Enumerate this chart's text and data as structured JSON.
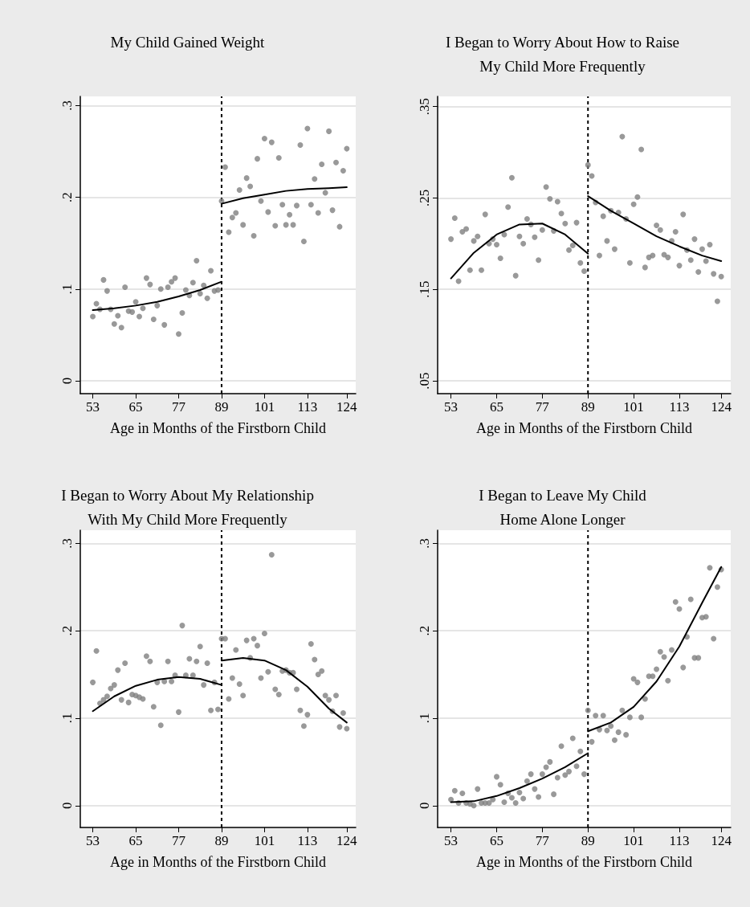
{
  "chart_data": [
    {
      "type": "scatter",
      "title": "My Child Gained Weight",
      "xlabel": "Age in Months of the Firstborn Child",
      "xlim": [
        49.5,
        126.5
      ],
      "xticks": [
        53,
        65,
        77,
        89,
        101,
        113,
        124
      ],
      "ylim": [
        -0.014,
        0.31
      ],
      "yticks": [
        {
          "value": 0,
          "label": "0"
        },
        {
          "value": 0.1,
          "label": ".1"
        },
        {
          "value": 0.2,
          "label": ".2"
        },
        {
          "value": 0.3,
          "label": ".3"
        }
      ],
      "grid": "y",
      "marker": "circle",
      "ref_lines": [
        {
          "axis": "x",
          "value": 89,
          "color": "#000000",
          "line_style": "dashed"
        }
      ],
      "x": [
        53,
        54,
        55,
        56,
        57,
        58,
        59,
        60,
        61,
        62,
        63,
        64,
        65,
        66,
        67,
        68,
        69,
        70,
        71,
        72,
        73,
        74,
        75,
        76,
        77,
        78,
        79,
        80,
        81,
        82,
        83,
        84,
        85,
        86,
        87,
        88,
        89,
        90,
        91,
        92,
        93,
        94,
        95,
        96,
        97,
        98,
        99,
        100,
        101,
        102,
        103,
        104,
        105,
        106,
        107,
        108,
        109,
        110,
        111,
        112,
        113,
        114,
        115,
        116,
        117,
        118,
        119,
        120,
        121,
        122,
        123,
        124
      ],
      "series": [
        {
          "color": "#808080",
          "values": [
            0.07,
            0.084,
            0.078,
            0.11,
            0.098,
            0.078,
            0.062,
            0.071,
            0.058,
            0.102,
            0.076,
            0.075,
            0.086,
            0.07,
            0.079,
            0.112,
            0.105,
            0.067,
            0.082,
            0.1,
            0.061,
            0.102,
            0.108,
            0.112,
            0.051,
            0.074,
            0.099,
            0.093,
            0.107,
            0.131,
            0.095,
            0.104,
            0.09,
            0.12,
            0.098,
            0.099,
            0.196,
            0.233,
            0.162,
            0.178,
            0.183,
            0.208,
            0.17,
            0.221,
            0.212,
            0.158,
            0.242,
            0.196,
            0.264,
            0.184,
            0.26,
            0.169,
            0.243,
            0.192,
            0.17,
            0.181,
            0.17,
            0.191,
            0.257,
            0.152,
            0.275,
            0.192,
            0.22,
            0.183,
            0.236,
            0.205,
            0.272,
            0.186,
            0.238,
            0.168,
            0.229,
            0.253
          ]
        },
        {
          "type": "line",
          "color": "#000000",
          "marker": "none",
          "x": [
            53,
            59,
            65,
            71,
            77,
            83,
            89
          ],
          "values": [
            0.077,
            0.079,
            0.082,
            0.086,
            0.092,
            0.099,
            0.108
          ]
        },
        {
          "type": "line",
          "color": "#000000",
          "marker": "none",
          "x": [
            89,
            95,
            101,
            107,
            113,
            119,
            124
          ],
          "values": [
            0.193,
            0.199,
            0.203,
            0.207,
            0.209,
            0.21,
            0.211
          ]
        }
      ]
    },
    {
      "type": "scatter",
      "title": "I Began to Worry About How to Raise\nMy Child More Frequently",
      "xlabel": "Age in Months of the Firstborn Child",
      "xlim": [
        49.5,
        126.5
      ],
      "xticks": [
        53,
        65,
        77,
        89,
        101,
        113,
        124
      ],
      "ylim": [
        0.036,
        0.361
      ],
      "yticks": [
        {
          "value": 0.05,
          "label": ".05"
        },
        {
          "value": 0.15,
          "label": ".15"
        },
        {
          "value": 0.25,
          "label": ".25"
        },
        {
          "value": 0.35,
          "label": ".35"
        }
      ],
      "grid": "y",
      "marker": "circle",
      "ref_lines": [
        {
          "axis": "x",
          "value": 89,
          "color": "#000000",
          "line_style": "dashed"
        }
      ],
      "x": [
        53,
        54,
        55,
        56,
        57,
        58,
        59,
        60,
        61,
        62,
        63,
        64,
        65,
        66,
        67,
        68,
        69,
        70,
        71,
        72,
        73,
        74,
        75,
        76,
        77,
        78,
        79,
        80,
        81,
        82,
        83,
        84,
        85,
        86,
        87,
        88,
        89,
        90,
        91,
        92,
        93,
        94,
        95,
        96,
        97,
        98,
        99,
        100,
        101,
        102,
        103,
        104,
        105,
        106,
        107,
        108,
        109,
        110,
        111,
        112,
        113,
        114,
        115,
        116,
        117,
        118,
        119,
        120,
        121,
        122,
        123,
        124
      ],
      "series": [
        {
          "color": "#808080",
          "values": [
            0.205,
            0.228,
            0.159,
            0.213,
            0.216,
            0.171,
            0.203,
            0.208,
            0.171,
            0.232,
            0.2,
            0.205,
            0.199,
            0.184,
            0.21,
            0.24,
            0.272,
            0.165,
            0.208,
            0.2,
            0.227,
            0.221,
            0.207,
            0.182,
            0.215,
            0.262,
            0.249,
            0.214,
            0.246,
            0.233,
            0.222,
            0.193,
            0.198,
            0.223,
            0.179,
            0.17,
            0.286,
            0.274,
            0.245,
            0.187,
            0.23,
            0.203,
            0.236,
            0.194,
            0.234,
            0.317,
            0.227,
            0.179,
            0.243,
            0.251,
            0.303,
            0.174,
            0.185,
            0.187,
            0.22,
            0.215,
            0.188,
            0.185,
            0.203,
            0.213,
            0.176,
            0.232,
            0.193,
            0.182,
            0.205,
            0.169,
            0.194,
            0.181,
            0.199,
            0.167,
            0.137,
            0.164
          ]
        },
        {
          "type": "line",
          "color": "#000000",
          "marker": "none",
          "x": [
            53,
            59,
            65,
            71,
            77,
            83,
            89
          ],
          "values": [
            0.162,
            0.19,
            0.21,
            0.221,
            0.222,
            0.21,
            0.189
          ]
        },
        {
          "type": "line",
          "color": "#000000",
          "marker": "none",
          "x": [
            89,
            95,
            101,
            107,
            113,
            119,
            124
          ],
          "values": [
            0.252,
            0.236,
            0.222,
            0.208,
            0.197,
            0.187,
            0.181
          ]
        }
      ]
    },
    {
      "type": "scatter",
      "title": "I Began to Worry About My Relationship\nWith My Child More Frequently",
      "xlabel": "Age in Months of the Firstborn Child",
      "xlim": [
        49.5,
        126.5
      ],
      "xticks": [
        53,
        65,
        77,
        89,
        101,
        113,
        124
      ],
      "ylim": [
        -0.025,
        0.315
      ],
      "yticks": [
        {
          "value": 0,
          "label": "0"
        },
        {
          "value": 0.1,
          "label": ".1"
        },
        {
          "value": 0.2,
          "label": ".2"
        },
        {
          "value": 0.3,
          "label": ".3"
        }
      ],
      "grid": "y",
      "marker": "circle",
      "ref_lines": [
        {
          "axis": "x",
          "value": 89,
          "color": "#000000",
          "line_style": "dashed"
        }
      ],
      "x": [
        53,
        54,
        55,
        56,
        57,
        58,
        59,
        60,
        61,
        62,
        63,
        64,
        65,
        66,
        67,
        68,
        69,
        70,
        71,
        72,
        73,
        74,
        75,
        76,
        77,
        78,
        79,
        80,
        81,
        82,
        83,
        84,
        85,
        86,
        87,
        88,
        89,
        90,
        91,
        92,
        93,
        94,
        95,
        96,
        97,
        98,
        99,
        100,
        101,
        102,
        103,
        104,
        105,
        106,
        107,
        108,
        109,
        110,
        111,
        112,
        113,
        114,
        115,
        116,
        117,
        118,
        119,
        120,
        121,
        122,
        123,
        124
      ],
      "series": [
        {
          "color": "#808080",
          "values": [
            0.141,
            0.177,
            0.117,
            0.121,
            0.125,
            0.134,
            0.138,
            0.155,
            0.121,
            0.163,
            0.118,
            0.127,
            0.126,
            0.124,
            0.122,
            0.171,
            0.165,
            0.113,
            0.141,
            0.092,
            0.142,
            0.165,
            0.142,
            0.149,
            0.107,
            0.206,
            0.149,
            0.168,
            0.149,
            0.165,
            0.182,
            0.138,
            0.163,
            0.109,
            0.141,
            0.11,
            0.191,
            0.191,
            0.122,
            0.146,
            0.178,
            0.139,
            0.126,
            0.189,
            0.169,
            0.191,
            0.183,
            0.146,
            0.197,
            0.153,
            0.287,
            0.133,
            0.127,
            0.154,
            0.155,
            0.152,
            0.152,
            0.133,
            0.109,
            0.091,
            0.104,
            0.185,
            0.167,
            0.15,
            0.154,
            0.126,
            0.121,
            0.108,
            0.126,
            0.09,
            0.106,
            0.088
          ]
        },
        {
          "type": "line",
          "color": "#000000",
          "marker": "none",
          "x": [
            53,
            59,
            65,
            71,
            77,
            83,
            89
          ],
          "values": [
            0.108,
            0.125,
            0.137,
            0.144,
            0.147,
            0.145,
            0.138
          ]
        },
        {
          "type": "line",
          "color": "#000000",
          "marker": "none",
          "x": [
            89,
            95,
            101,
            107,
            113,
            119,
            124
          ],
          "values": [
            0.166,
            0.169,
            0.166,
            0.155,
            0.136,
            0.111,
            0.095
          ]
        }
      ]
    },
    {
      "type": "scatter",
      "title": "I Began to Leave My Child\nHome Alone Longer",
      "xlabel": "Age in Months of the Firstborn Child",
      "xlim": [
        49.5,
        126.5
      ],
      "xticks": [
        53,
        65,
        77,
        89,
        101,
        113,
        124
      ],
      "ylim": [
        -0.025,
        0.315
      ],
      "yticks": [
        {
          "value": 0,
          "label": "0"
        },
        {
          "value": 0.1,
          "label": ".1"
        },
        {
          "value": 0.2,
          "label": ".2"
        },
        {
          "value": 0.3,
          "label": ".3"
        }
      ],
      "grid": "y",
      "marker": "circle",
      "ref_lines": [
        {
          "axis": "x",
          "value": 89,
          "color": "#000000",
          "line_style": "dashed"
        }
      ],
      "x": [
        53,
        54,
        55,
        56,
        57,
        58,
        59,
        60,
        61,
        62,
        63,
        64,
        65,
        66,
        67,
        68,
        69,
        70,
        71,
        72,
        73,
        74,
        75,
        76,
        77,
        78,
        79,
        80,
        81,
        82,
        83,
        84,
        85,
        86,
        87,
        88,
        89,
        90,
        91,
        92,
        93,
        94,
        95,
        96,
        97,
        98,
        99,
        100,
        101,
        102,
        103,
        104,
        105,
        106,
        107,
        108,
        109,
        110,
        111,
        112,
        113,
        114,
        115,
        116,
        117,
        118,
        119,
        120,
        121,
        122,
        123,
        124
      ],
      "series": [
        {
          "color": "#808080",
          "values": [
            0.007,
            0.017,
            0.003,
            0.014,
            0.003,
            0.002,
            0.0,
            0.019,
            0.003,
            0.003,
            0.003,
            0.007,
            0.033,
            0.024,
            0.004,
            0.014,
            0.009,
            0.003,
            0.015,
            0.008,
            0.028,
            0.036,
            0.019,
            0.01,
            0.036,
            0.044,
            0.05,
            0.013,
            0.032,
            0.068,
            0.035,
            0.039,
            0.077,
            0.045,
            0.062,
            0.036,
            0.109,
            0.073,
            0.103,
            0.087,
            0.103,
            0.086,
            0.091,
            0.075,
            0.084,
            0.109,
            0.081,
            0.101,
            0.145,
            0.141,
            0.101,
            0.122,
            0.148,
            0.148,
            0.156,
            0.176,
            0.17,
            0.143,
            0.178,
            0.233,
            0.225,
            0.158,
            0.193,
            0.236,
            0.169,
            0.169,
            0.215,
            0.216,
            0.272,
            0.191,
            0.25,
            0.27
          ]
        },
        {
          "type": "line",
          "color": "#000000",
          "marker": "none",
          "x": [
            53,
            59,
            65,
            71,
            77,
            83,
            89
          ],
          "values": [
            0.004,
            0.005,
            0.011,
            0.02,
            0.031,
            0.044,
            0.06
          ]
        },
        {
          "type": "line",
          "color": "#000000",
          "marker": "none",
          "x": [
            89,
            95,
            101,
            107,
            113,
            119,
            124
          ],
          "values": [
            0.085,
            0.095,
            0.113,
            0.142,
            0.182,
            0.232,
            0.273
          ]
        }
      ]
    }
  ]
}
